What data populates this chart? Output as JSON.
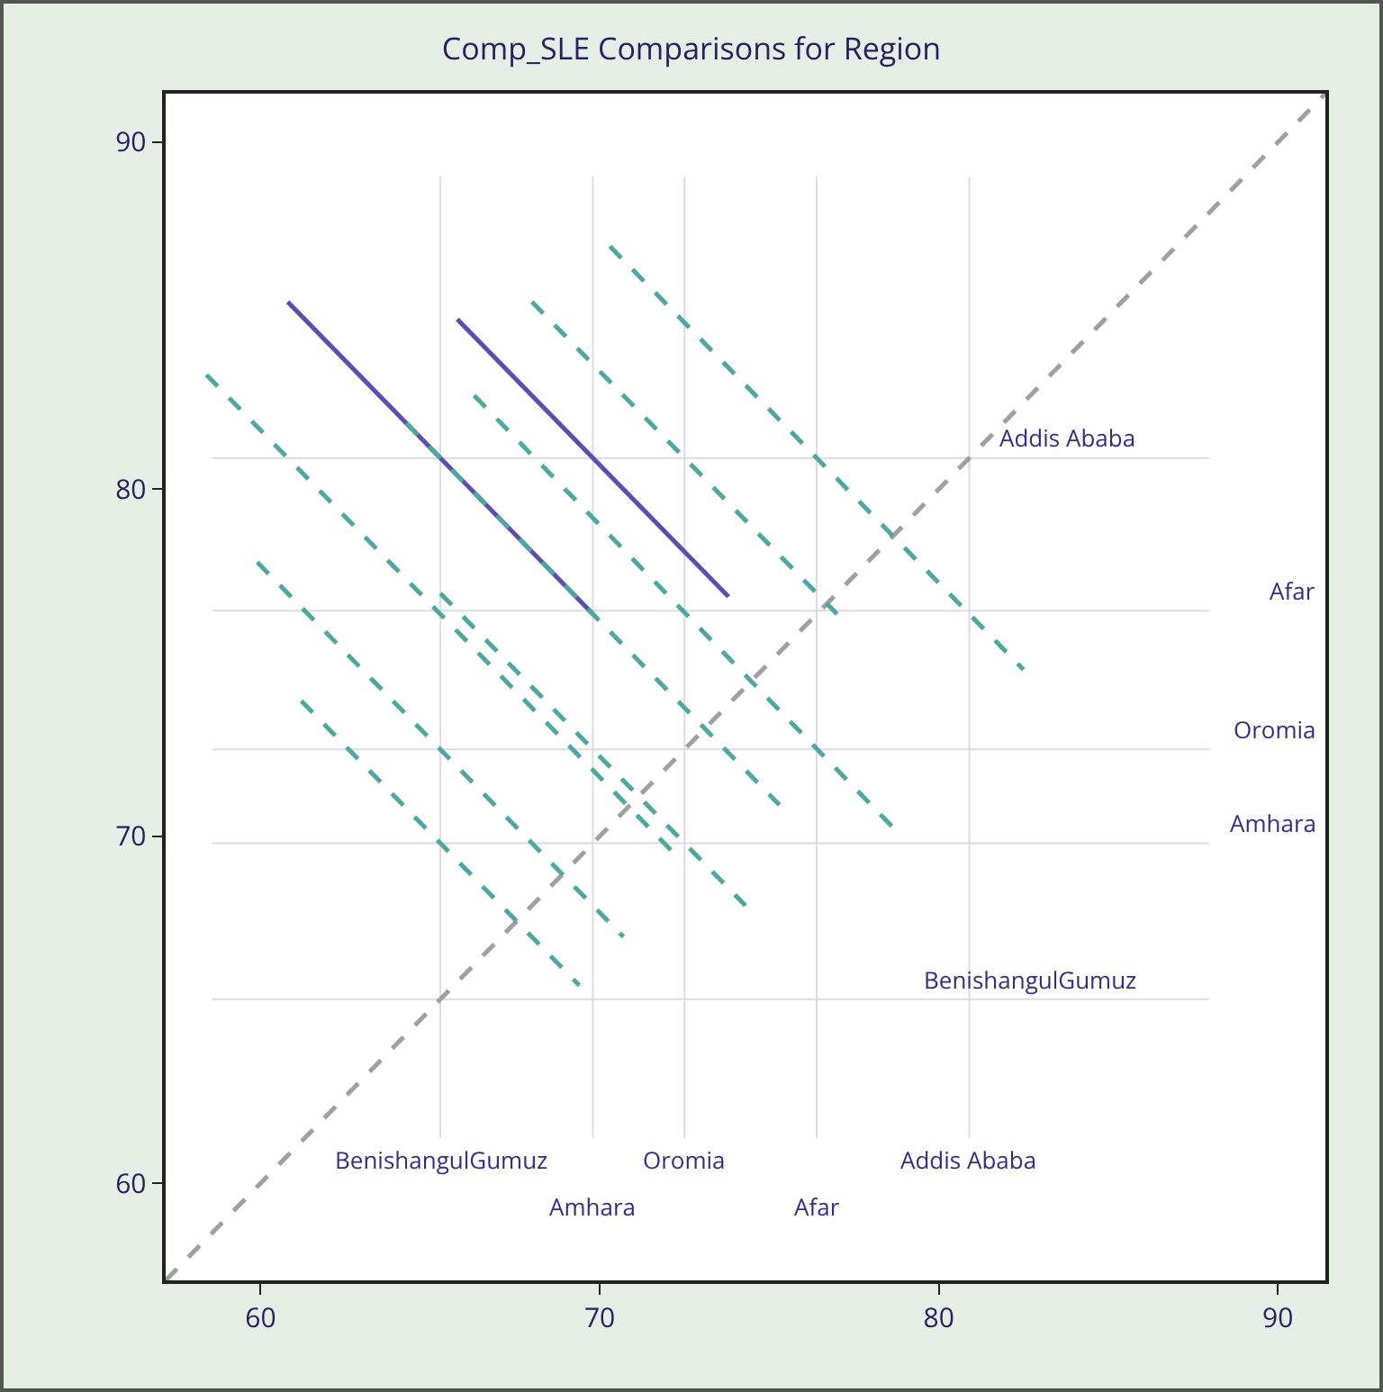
{
  "chart_data": {
    "type": "line",
    "title": "Comp_SLE Comparisons for Region",
    "xlim": [
      57.2,
      91.4
    ],
    "ylim": [
      57.2,
      91.4
    ],
    "xticks": [
      60,
      70,
      80,
      90
    ],
    "yticks": [
      60,
      70,
      80,
      90
    ],
    "series": [
      {
        "x": [
          57.2,
          91.4
        ],
        "values": [
          57.2,
          91.4
        ],
        "color": "#a0a0a0",
        "line_style": "dashed"
      },
      {
        "x": [
          60.8,
          69.8
        ],
        "values": [
          85.4,
          76.4
        ],
        "color": "#5a4fb0",
        "line_style": "solid"
      },
      {
        "x": [
          65.8,
          73.8
        ],
        "values": [
          84.9,
          76.9
        ],
        "color": "#5a4fb0",
        "line_style": "solid"
      },
      {
        "x": [
          58.4,
          72.2
        ],
        "values": [
          83.3,
          69.5
        ],
        "color": "#4fa8a0",
        "line_style": "dashed"
      },
      {
        "x": [
          59.9,
          70.7
        ],
        "values": [
          77.9,
          67.1
        ],
        "color": "#4fa8a0",
        "line_style": "dashed"
      },
      {
        "x": [
          61.2,
          69.4
        ],
        "values": [
          73.9,
          65.7
        ],
        "color": "#4fa8a0",
        "line_style": "dashed"
      },
      {
        "x": [
          66.3,
          78.7
        ],
        "values": [
          82.7,
          70.2
        ],
        "color": "#4fa8a0",
        "line_style": "dashed"
      },
      {
        "x": [
          68.0,
          77.0
        ],
        "values": [
          85.4,
          76.4
        ],
        "color": "#4fa8a0",
        "line_style": "dashed"
      },
      {
        "x": [
          70.3,
          82.5
        ],
        "values": [
          87.0,
          74.8
        ],
        "color": "#4fa8a0",
        "line_style": "dashed"
      },
      {
        "x": [
          65.3,
          74.3
        ],
        "values": [
          77.0,
          68.0
        ],
        "color": "#4fa8a0",
        "line_style": "dashed"
      },
      {
        "x": [
          64.3,
          75.3
        ],
        "values": [
          81.9,
          70.9
        ],
        "color": "#4fa8a0",
        "line_style": "dashed"
      }
    ],
    "ref_lines": [
      {
        "axis": "x",
        "value": 65.3,
        "label": "BenishangulGumuz",
        "color": "#dcdcdc"
      },
      {
        "axis": "x",
        "value": 69.8,
        "label": "Amhara",
        "color": "#dcdcdc"
      },
      {
        "axis": "x",
        "value": 72.5,
        "label": "Oromia",
        "color": "#dcdcdc"
      },
      {
        "axis": "x",
        "value": 76.4,
        "label": "Afar",
        "color": "#dcdcdc"
      },
      {
        "axis": "x",
        "value": 80.9,
        "label": "Addis Ababa",
        "color": "#dcdcdc"
      },
      {
        "axis": "y",
        "value": 80.9,
        "label": "Addis Ababa",
        "color": "#dcdcdc"
      },
      {
        "axis": "y",
        "value": 76.5,
        "label": "Afar",
        "color": "#dcdcdc"
      },
      {
        "axis": "y",
        "value": 72.5,
        "label": "Oromia",
        "color": "#dcdcdc"
      },
      {
        "axis": "y",
        "value": 69.8,
        "label": "Amhara",
        "color": "#dcdcdc"
      },
      {
        "axis": "y",
        "value": 65.3,
        "label": "BenishangulGumuz",
        "color": "#dcdcdc"
      }
    ]
  }
}
